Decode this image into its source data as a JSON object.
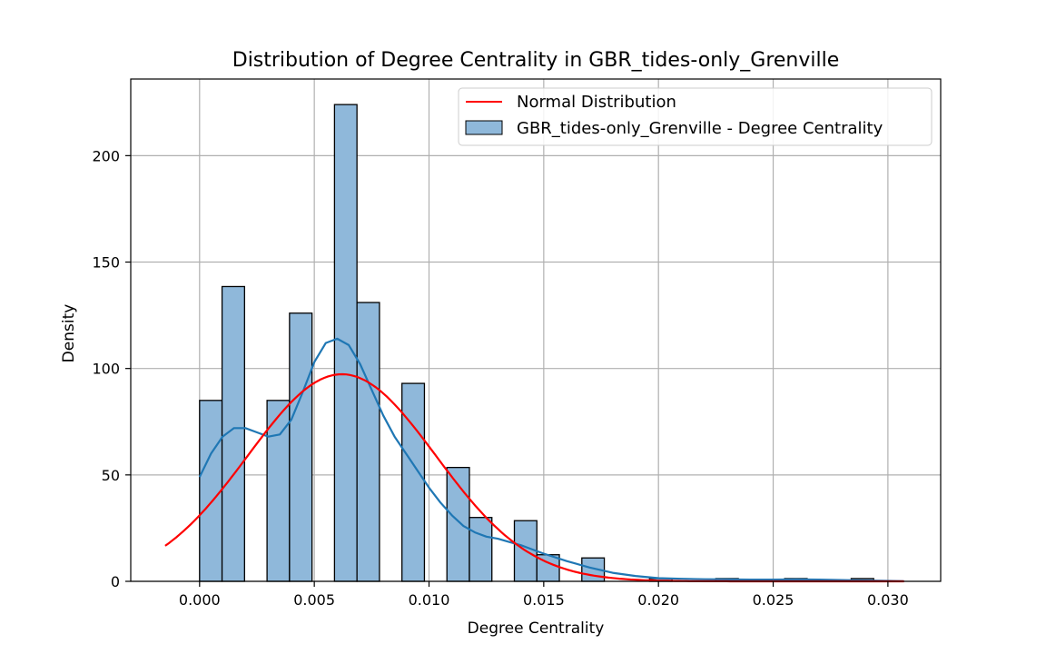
{
  "chart_data": {
    "type": "bar",
    "title": "Distribution of Degree Centrality in GBR_tides-only_Grenville",
    "xlabel": "Degree Centrality",
    "ylabel": "Density",
    "xlim": [
      -0.003,
      0.0323
    ],
    "ylim": [
      0,
      236
    ],
    "xticks": [
      0.0,
      0.005,
      0.01,
      0.015,
      0.02,
      0.025,
      0.03
    ],
    "xtick_labels": [
      "0.000",
      "0.005",
      "0.010",
      "0.015",
      "0.020",
      "0.025",
      "0.030"
    ],
    "yticks": [
      0,
      50,
      100,
      150,
      200
    ],
    "ytick_labels": [
      "0",
      "50",
      "100",
      "150",
      "200"
    ],
    "grid": true,
    "legend_position": "top-right",
    "histogram": {
      "name": "GBR_tides-only_Grenville - Degree Centrality",
      "color": "#1f77b4",
      "fill_color": "#8fb8da",
      "bin_width": 0.00098,
      "bin_starts": [
        0.0,
        0.00098,
        0.00294,
        0.00392,
        0.00588,
        0.00686,
        0.00882,
        0.01078,
        0.01176,
        0.01372,
        0.0147,
        0.01666,
        0.01961,
        0.0225,
        0.0255,
        0.0284
      ],
      "values": [
        85,
        138.5,
        85,
        126,
        224,
        131,
        93,
        53.5,
        30,
        28.5,
        12.5,
        11,
        1.3,
        1.3,
        1.3,
        1.3
      ]
    },
    "kde_curve": {
      "color": "#1f77b4",
      "x": [
        0.0,
        0.0005,
        0.001,
        0.0015,
        0.002,
        0.0025,
        0.003,
        0.0035,
        0.004,
        0.0045,
        0.005,
        0.0055,
        0.006,
        0.0065,
        0.007,
        0.0075,
        0.008,
        0.0085,
        0.009,
        0.0095,
        0.01,
        0.0105,
        0.011,
        0.0115,
        0.012,
        0.0125,
        0.013,
        0.0135,
        0.014,
        0.0145,
        0.015,
        0.016,
        0.017,
        0.018,
        0.019,
        0.02,
        0.021,
        0.022,
        0.023,
        0.024,
        0.025,
        0.026,
        0.027,
        0.028,
        0.029,
        0.03,
        0.0307
      ],
      "y": [
        49,
        60,
        68,
        72,
        72,
        70,
        68,
        69,
        76,
        89,
        103,
        112,
        114,
        111,
        102,
        90,
        78,
        68,
        60,
        52,
        44,
        37,
        31,
        26,
        23,
        21,
        20,
        18.5,
        17,
        15,
        13,
        9.5,
        6.5,
        4,
        2.5,
        1.5,
        1.2,
        1,
        0.9,
        0.8,
        0.8,
        0.9,
        0.8,
        0.6,
        0.4,
        0.2,
        0.1
      ]
    },
    "normal_curve": {
      "name": "Normal Distribution",
      "color": "#ff0000",
      "x_range": [
        -0.0015,
        0.0307
      ],
      "mean": 0.0062,
      "std": 0.0041,
      "peak_density": 97.3
    }
  }
}
